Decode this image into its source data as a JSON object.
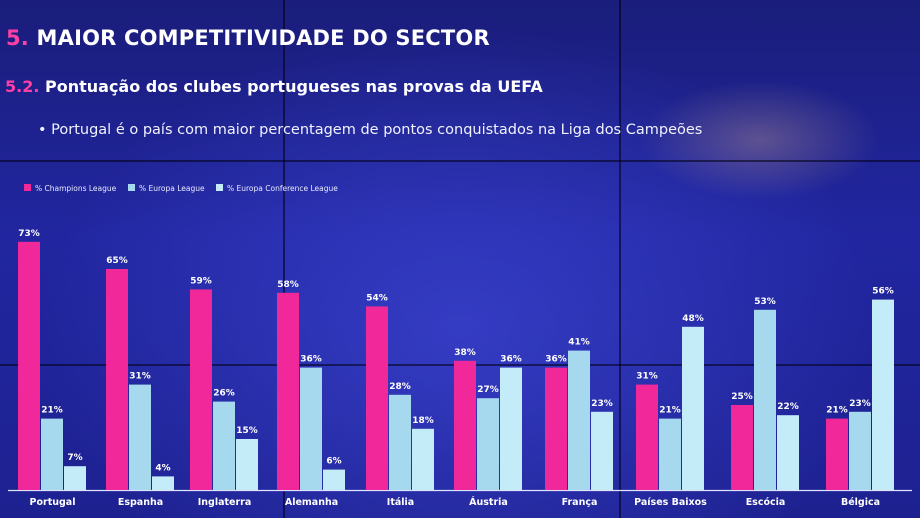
{
  "slide": {
    "title_number": "5.",
    "title_text": "MAIOR COMPETITIVIDADE DO SECTOR",
    "subtitle_number": "5.2.",
    "subtitle_text": "Pontuação dos clubes portugueses nas provas da UEFA",
    "bullet": "• Portugal é o país com maior percentagem de pontos conquistados na Liga dos Campeões"
  },
  "colors": {
    "champions": "#f0289a",
    "europa": "#a6d9ee",
    "conference": "#c3ecf8"
  },
  "chart_data": {
    "type": "bar",
    "title": "",
    "xlabel": "",
    "ylabel": "",
    "ylim": [
      0,
      80
    ],
    "legend_position": "top-left",
    "grid": false,
    "categories": [
      "Portugal",
      "Espanha",
      "Inglaterra",
      "Alemanha",
      "Itália",
      "Áustria",
      "França",
      "Países Baixos",
      "Escócia",
      "Bélgica"
    ],
    "series": [
      {
        "name": "% Champions League",
        "color": "#f0289a",
        "values": [
          73,
          65,
          59,
          58,
          54,
          38,
          36,
          31,
          25,
          21
        ],
        "labels": [
          "73%",
          "65%",
          "59%",
          "58%",
          "54%",
          "38%",
          "36%",
          "31%",
          "25%",
          "21%"
        ]
      },
      {
        "name": "% Europa League",
        "color": "#a6d9ee",
        "values": [
          21,
          31,
          26,
          36,
          28,
          27,
          41,
          21,
          53,
          23
        ],
        "labels": [
          "21%",
          "31%",
          "26%",
          "36%",
          "28%",
          "27%",
          "41%",
          "21%",
          "53%",
          "23%"
        ]
      },
      {
        "name": "% Europa Conference League",
        "color": "#c3ecf8",
        "values": [
          7,
          4,
          15,
          6,
          18,
          36,
          23,
          48,
          22,
          56
        ],
        "labels": [
          "7%",
          "4%",
          "15%",
          "6%",
          "18%",
          "36%",
          "23%",
          "48%",
          "22%",
          "56%"
        ]
      }
    ]
  }
}
